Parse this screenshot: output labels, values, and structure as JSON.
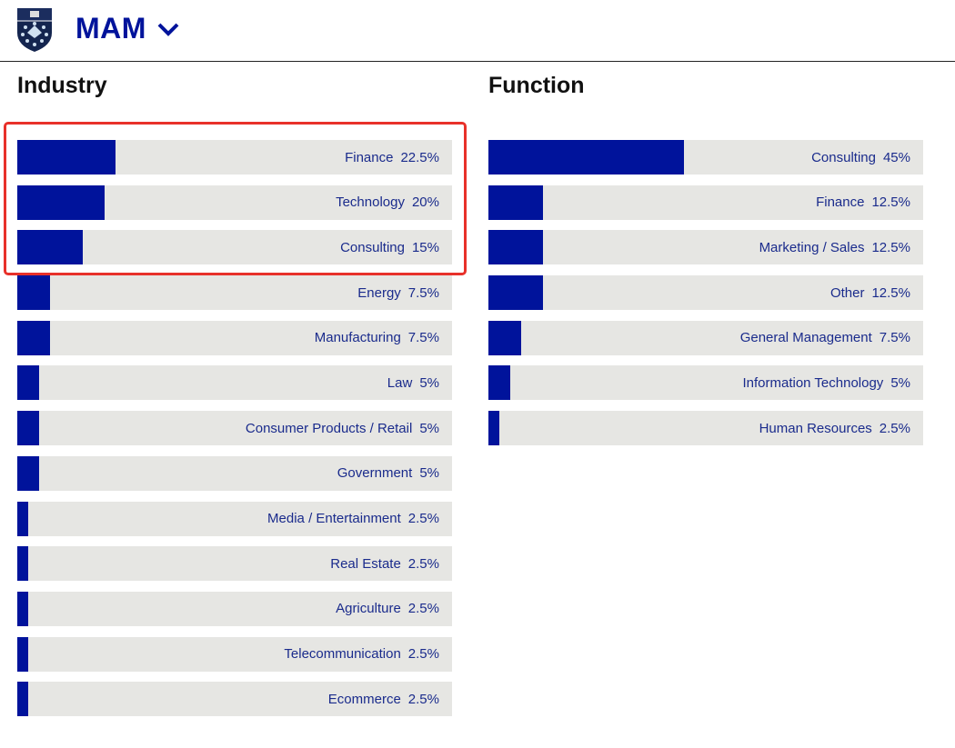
{
  "header": {
    "brand": "MAM",
    "logo_icon": "school-shield-logo",
    "dropdown_icon": "chevron-down-icon"
  },
  "colors": {
    "bar": "#00139b",
    "track": "#e6e6e3",
    "highlight": "#e8312a",
    "label": "#1a2b8c"
  },
  "chart_data": [
    {
      "type": "bar",
      "title": "Industry",
      "categories": [
        "Finance",
        "Technology",
        "Consulting",
        "Energy",
        "Manufacturing",
        "Law",
        "Consumer Products / Retail",
        "Government",
        "Media / Entertainment",
        "Real Estate",
        "Agriculture",
        "Telecommunication",
        "Ecommerce"
      ],
      "values": [
        22.5,
        20,
        15,
        7.5,
        7.5,
        5,
        5,
        5,
        2.5,
        2.5,
        2.5,
        2.5,
        2.5
      ],
      "labels": [
        "22.5%",
        "20%",
        "15%",
        "7.5%",
        "7.5%",
        "5%",
        "5%",
        "5%",
        "2.5%",
        "2.5%",
        "2.5%",
        "2.5%",
        "2.5%"
      ],
      "xlim": [
        0,
        100
      ],
      "highlighted": [
        "Finance",
        "Technology",
        "Consulting"
      ]
    },
    {
      "type": "bar",
      "title": "Function",
      "categories": [
        "Consulting",
        "Finance",
        "Marketing / Sales",
        "Other",
        "General Management",
        "Information Technology",
        "Human Resources"
      ],
      "values": [
        45,
        12.5,
        12.5,
        12.5,
        7.5,
        5,
        2.5
      ],
      "labels": [
        "45%",
        "12.5%",
        "12.5%",
        "12.5%",
        "7.5%",
        "5%",
        "2.5%"
      ],
      "xlim": [
        0,
        100
      ]
    }
  ]
}
